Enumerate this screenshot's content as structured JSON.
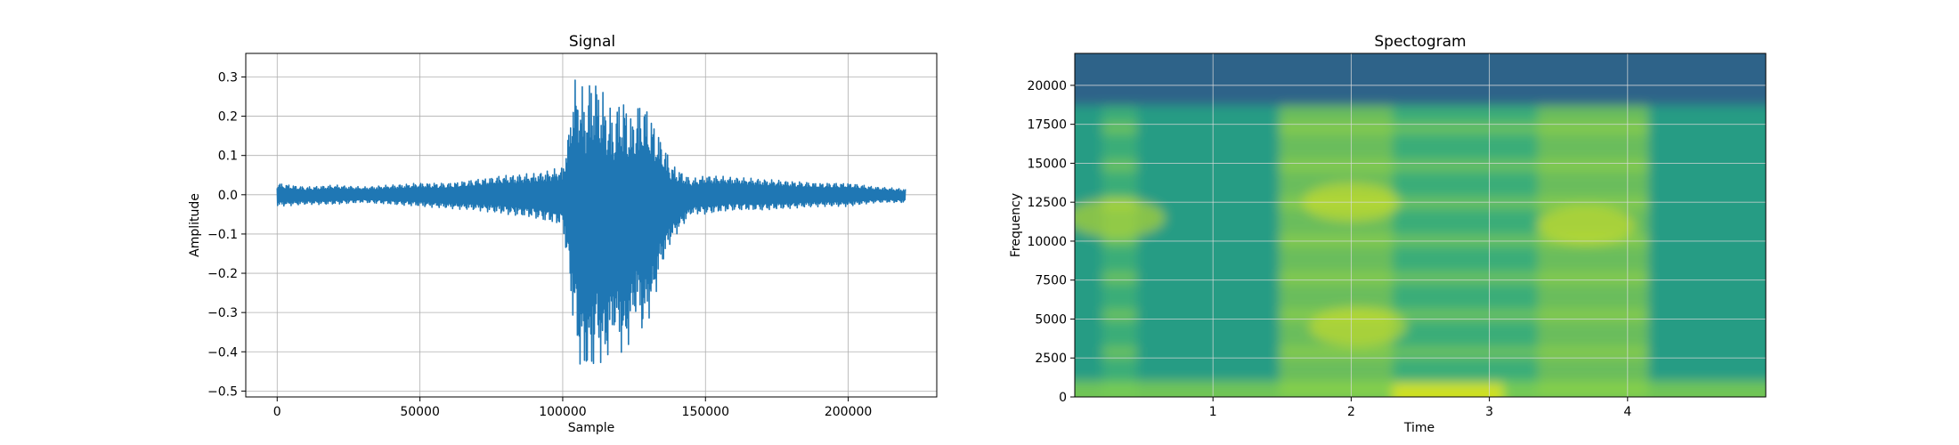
{
  "chart_data": [
    {
      "type": "line",
      "title": "Signal",
      "xlabel": "Sample",
      "ylabel": "Amplitude",
      "xlim": [
        -11000,
        231000
      ],
      "ylim": [
        -0.515,
        0.36
      ],
      "x_ticks": [
        0,
        50000,
        100000,
        150000,
        200000
      ],
      "x_tick_labels": [
        "0",
        "50000",
        "100000",
        "150000",
        "200000"
      ],
      "y_ticks": [
        0.3,
        0.2,
        0.1,
        0.0,
        -0.1,
        -0.2,
        -0.3,
        -0.4,
        -0.5
      ],
      "y_tick_labels": [
        "0.3",
        "0.2",
        "0.1",
        "0.0",
        "−0.1",
        "−0.2",
        "−0.3",
        "−0.4",
        "−0.5"
      ],
      "grid": true,
      "series": [
        {
          "color": "#1f77b4",
          "x": [
            0,
            10000,
            20000,
            30000,
            40000,
            50000,
            60000,
            70000,
            80000,
            90000,
            100000,
            102000,
            104000,
            106000,
            108000,
            110000,
            112000,
            114000,
            116000,
            118000,
            120000,
            122000,
            124000,
            126000,
            128000,
            130000,
            132000,
            134000,
            136000,
            138000,
            140000,
            145000,
            150000,
            160000,
            170000,
            180000,
            190000,
            200000,
            210000,
            220000
          ],
          "max": [
            0.03,
            0.02,
            0.025,
            0.02,
            0.025,
            0.03,
            0.03,
            0.04,
            0.05,
            0.055,
            0.07,
            0.16,
            0.3,
            0.29,
            0.26,
            0.31,
            0.3,
            0.27,
            0.24,
            0.2,
            0.26,
            0.25,
            0.2,
            0.23,
            0.25,
            0.22,
            0.19,
            0.15,
            0.12,
            0.08,
            0.07,
            0.04,
            0.05,
            0.045,
            0.04,
            0.035,
            0.03,
            0.03,
            0.02,
            0.015
          ],
          "min": [
            -0.03,
            -0.025,
            -0.025,
            -0.02,
            -0.025,
            -0.03,
            -0.035,
            -0.04,
            -0.05,
            -0.06,
            -0.08,
            -0.2,
            -0.35,
            -0.45,
            -0.46,
            -0.47,
            -0.4,
            -0.45,
            -0.42,
            -0.35,
            -0.4,
            -0.42,
            -0.35,
            -0.3,
            -0.36,
            -0.32,
            -0.28,
            -0.2,
            -0.16,
            -0.12,
            -0.1,
            -0.05,
            -0.05,
            -0.04,
            -0.04,
            -0.035,
            -0.03,
            -0.03,
            -0.02,
            -0.02
          ]
        }
      ]
    },
    {
      "type": "heatmap",
      "title": "Spectogram",
      "xlabel": "Time",
      "ylabel": "Frequency",
      "xlim": [
        0,
        5
      ],
      "ylim": [
        0,
        22050
      ],
      "x_ticks": [
        1,
        2,
        3,
        4
      ],
      "x_tick_labels": [
        "1",
        "2",
        "3",
        "4"
      ],
      "y_ticks": [
        0,
        2500,
        5000,
        7500,
        10000,
        12500,
        15000,
        17500,
        20000
      ],
      "y_tick_labels": [
        "0",
        "2500",
        "5000",
        "7500",
        "10000",
        "12500",
        "15000",
        "17500",
        "20000"
      ],
      "grid": true,
      "colormap": "viridis",
      "colors": {
        "cutoff_band": "#2e6389",
        "background": "#259c84",
        "speech": "#52bd6b",
        "speech_strong": "#a5d93d",
        "low_freq": "#8fd744",
        "peak": "#d8e21f"
      },
      "cutoff_frequency": 18700,
      "time_segments": [
        {
          "t": [
            0.0,
            0.2
          ],
          "level": "background"
        },
        {
          "t": [
            0.2,
            0.45
          ],
          "level": "speech"
        },
        {
          "t": [
            0.45,
            1.48
          ],
          "level": "background"
        },
        {
          "t": [
            1.48,
            2.3
          ],
          "level": "speech_strong"
        },
        {
          "t": [
            2.3,
            3.35
          ],
          "level": "speech"
        },
        {
          "t": [
            3.35,
            4.15
          ],
          "level": "speech_strong"
        },
        {
          "t": [
            4.15,
            5.0
          ],
          "level": "background"
        }
      ]
    }
  ]
}
